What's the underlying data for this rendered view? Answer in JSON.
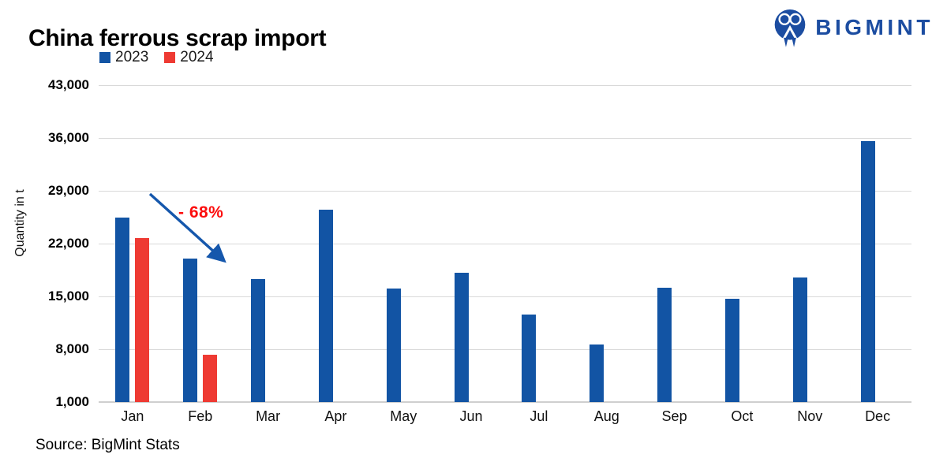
{
  "header": {
    "title": "China ferrous scrap import",
    "logo_text": "BIGMINT"
  },
  "legend": {
    "items": [
      {
        "label": "2023",
        "color": "#1254A4"
      },
      {
        "label": "2024",
        "color": "#EE3A33"
      }
    ]
  },
  "annotation": {
    "text": "- 68%",
    "color": "#FC0D0D"
  },
  "source": "Source: BigMint Stats",
  "colors": {
    "bar_2023": "#1254A4",
    "bar_2024": "#EE3A33",
    "arrow": "#1557AC",
    "logo": "#1C4DA1",
    "gridline": "#D9D9D9",
    "axis_line": "#CFCFCF",
    "annotation_red": "#FC0D0D"
  },
  "chart_data": {
    "type": "bar",
    "title": "China ferrous scrap import",
    "ylabel": "Quantity in t",
    "xlabel": "",
    "categories": [
      "Jan",
      "Feb",
      "Mar",
      "Apr",
      "May",
      "Jun",
      "Jul",
      "Aug",
      "Sep",
      "Oct",
      "Nov",
      "Dec"
    ],
    "series": [
      {
        "name": "2023",
        "color": "#1254A4",
        "values": [
          25400,
          20000,
          17300,
          26500,
          16000,
          18100,
          12600,
          8600,
          16100,
          14700,
          17500,
          35600
        ]
      },
      {
        "name": "2024",
        "color": "#EE3A33",
        "values": [
          22700,
          7300,
          null,
          null,
          null,
          null,
          null,
          null,
          null,
          null,
          null,
          null
        ]
      }
    ],
    "ylim": [
      1000,
      43000
    ],
    "yticks": [
      1000,
      8000,
      15000,
      22000,
      29000,
      36000,
      43000
    ],
    "grid": true,
    "legend_position": "top-left",
    "annotations": [
      {
        "text": "- 68%"
      }
    ]
  }
}
